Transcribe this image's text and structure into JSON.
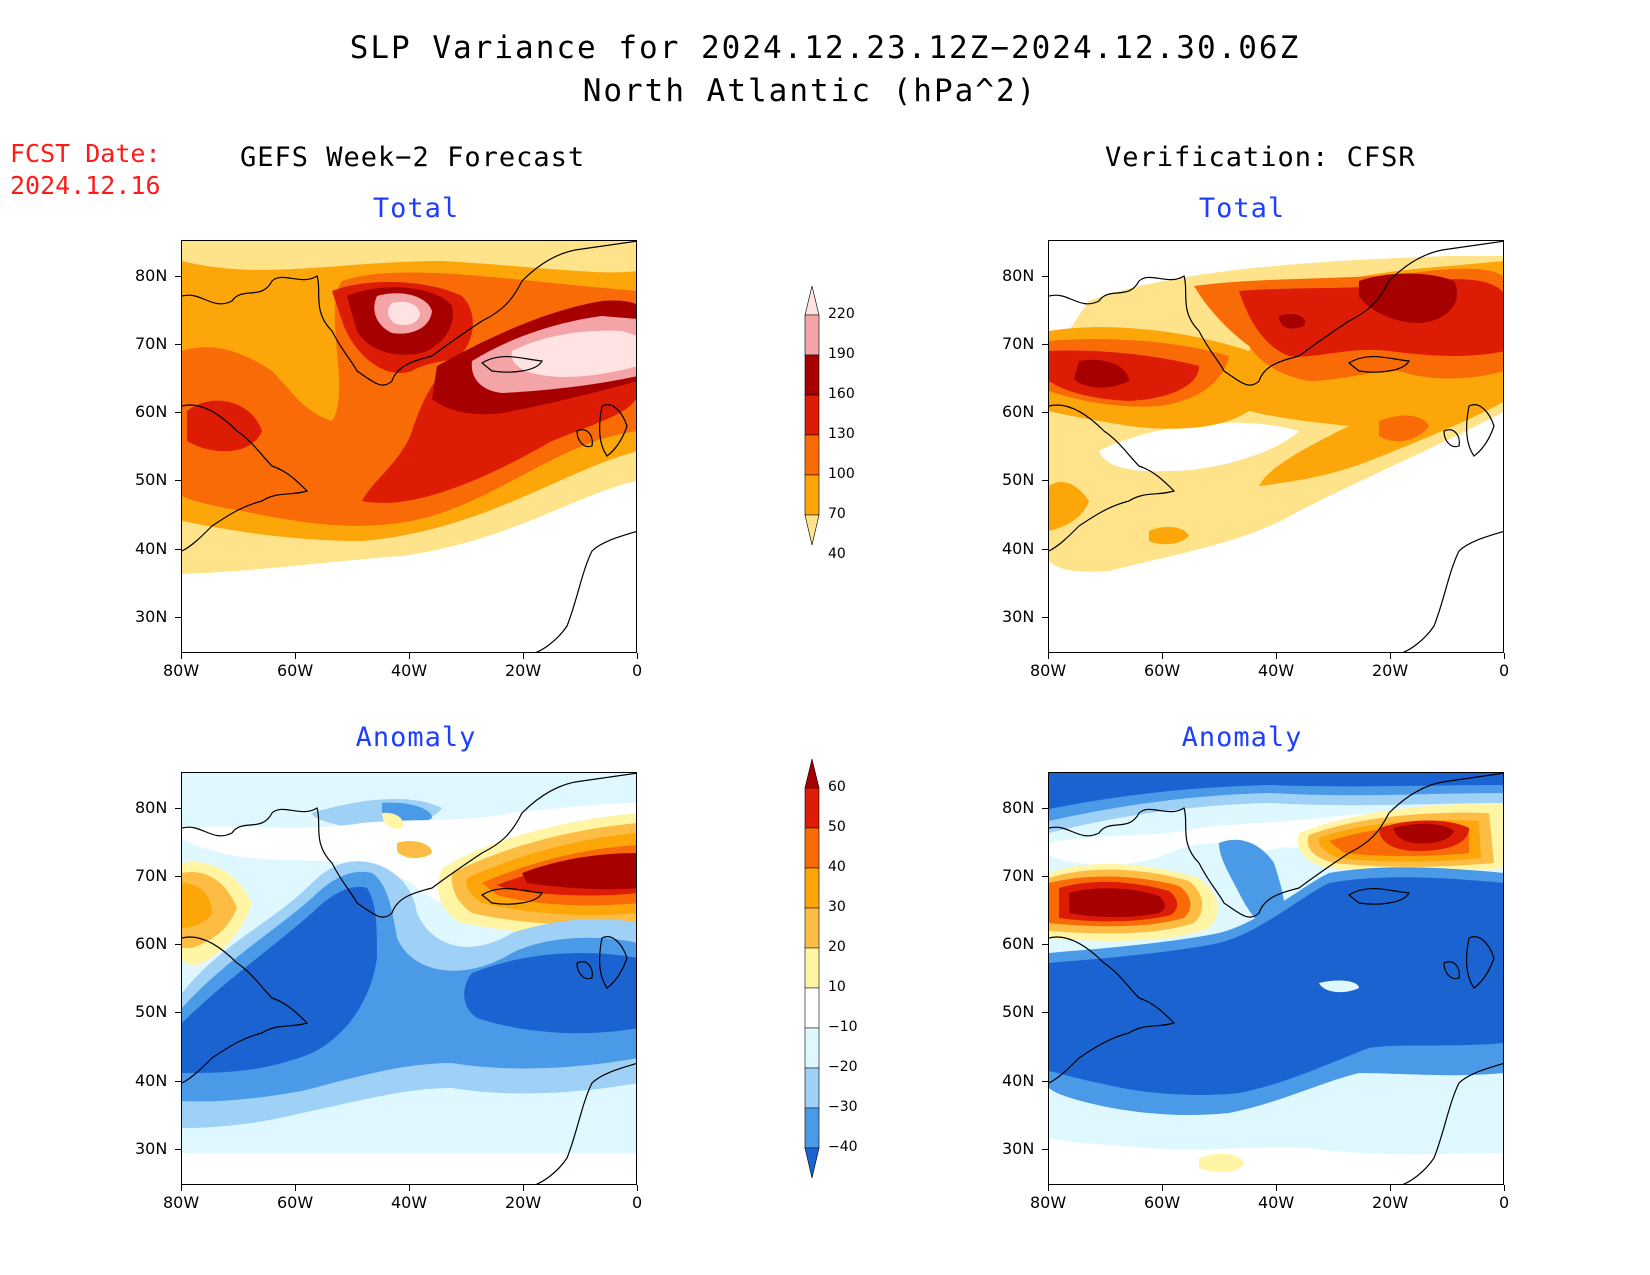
{
  "title_line1": "SLP Variance for 2024.12.23.12Z−2024.12.30.06Z",
  "title_line2": "North Atlantic (hPa^2)",
  "fcst_date_label": "FCST Date:",
  "fcst_date_value": "2024.12.16",
  "left_column_title": "GEFS Week−2 Forecast",
  "right_column_title": "Verification: CFSR",
  "panels": {
    "total_label": "Total",
    "anomaly_label": "Anomaly"
  },
  "axes": {
    "lat_ticks": [
      "80N",
      "70N",
      "60N",
      "50N",
      "40N",
      "30N"
    ],
    "lon_ticks": [
      "80W",
      "60W",
      "40W",
      "20W",
      "0"
    ]
  },
  "total_colorbar": {
    "levels": [
      "40",
      "70",
      "100",
      "130",
      "160",
      "190",
      "220"
    ],
    "colors": [
      "#fee38a",
      "#fca60a",
      "#f86b07",
      "#dd1c05",
      "#a60000",
      "#f4a3a7",
      "#ffe3e3"
    ]
  },
  "anomaly_colorbar": {
    "levels": [
      "60",
      "50",
      "40",
      "30",
      "20",
      "10",
      "−10",
      "−20",
      "−30",
      "−40"
    ],
    "colors": [
      "#a60000",
      "#dd1c05",
      "#f86b07",
      "#fca60a",
      "#fdbd45",
      "#fff5a5",
      "#ffffff",
      "#dff8ff",
      "#9fd0f5",
      "#4a9ae8",
      "#1c63d2"
    ]
  }
}
